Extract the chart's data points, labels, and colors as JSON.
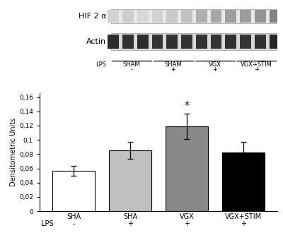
{
  "bar_values": [
    0.057,
    0.085,
    0.119,
    0.082
  ],
  "bar_errors": [
    0.007,
    0.012,
    0.018,
    0.015
  ],
  "bar_colors": [
    "#ffffff",
    "#c0c0c0",
    "#888888",
    "#000000"
  ],
  "bar_edge_colors": [
    "#000000",
    "#000000",
    "#000000",
    "#000000"
  ],
  "bar_labels_top": [
    "SHA",
    "SHA",
    "VGX",
    "VGX+STIM"
  ],
  "bar_labels_bottom": [
    "-",
    "+",
    "+",
    "+"
  ],
  "lps_label": "LPS",
  "ylabel": "Densitometric Units",
  "yticks": [
    0,
    0.02,
    0.04,
    0.06,
    0.08,
    0.1,
    0.12,
    0.14,
    0.16
  ],
  "ytick_labels": [
    "0",
    "0,02",
    "0,04",
    "0,06",
    "0,08",
    "0,1",
    "0,12",
    "0,14",
    "0,16"
  ],
  "ylim": [
    0,
    0.165
  ],
  "significance_bar": 2,
  "significance_symbol": "*",
  "blot_label_1": "HIF 2 α",
  "blot_label_2": "Actin",
  "group_labels": [
    "SHAM",
    "SHAM",
    "VGX",
    "VGX+STIM"
  ],
  "group_lps": [
    "-",
    "+",
    "+",
    "+"
  ],
  "hif2a_bands": [
    0.25,
    0.28,
    0.22,
    0.26,
    0.3,
    0.35,
    0.45,
    0.5,
    0.55,
    0.55,
    0.6,
    0.7
  ],
  "actin_bands": [
    0.9,
    0.88,
    0.9,
    0.87,
    0.88,
    0.87,
    0.88,
    0.87,
    0.88,
    0.87,
    0.88,
    0.92
  ]
}
